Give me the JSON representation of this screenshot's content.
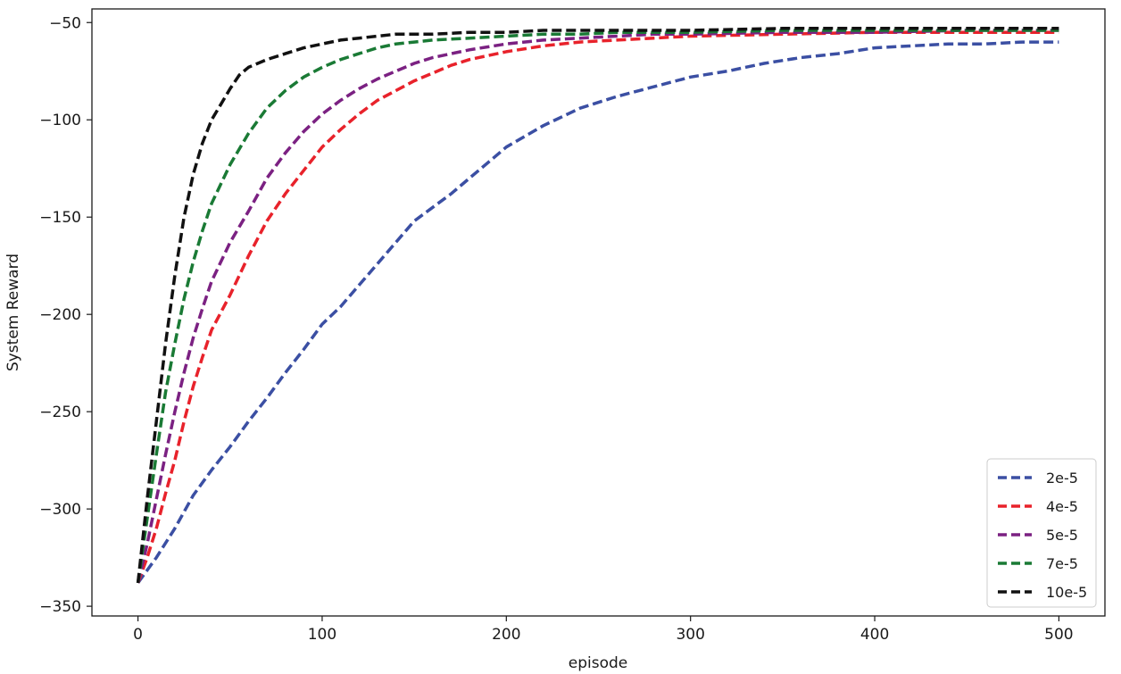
{
  "chart_data": {
    "type": "line",
    "title": "",
    "xlabel": "episode",
    "ylabel": "System Reward",
    "xlim": [
      -25,
      525
    ],
    "ylim": [
      -355,
      -43
    ],
    "xticks": [
      0,
      100,
      200,
      300,
      400,
      500
    ],
    "yticks": [
      -350,
      -300,
      -250,
      -200,
      -150,
      -100,
      -50
    ],
    "grid": false,
    "legend_position": "bottom-right",
    "line_style": "dashed",
    "series": [
      {
        "name": "2e-5",
        "color": "#3b4fa3",
        "x": [
          0,
          10,
          20,
          30,
          40,
          50,
          60,
          70,
          80,
          90,
          100,
          110,
          120,
          130,
          140,
          150,
          160,
          170,
          180,
          190,
          200,
          220,
          240,
          260,
          280,
          300,
          320,
          340,
          360,
          380,
          400,
          420,
          440,
          460,
          480,
          500
        ],
        "values": [
          -338,
          -325,
          -310,
          -293,
          -280,
          -268,
          -255,
          -243,
          -230,
          -218,
          -205,
          -196,
          -185,
          -174,
          -163,
          -152,
          -145,
          -138,
          -130,
          -122,
          -114,
          -103,
          -94,
          -88,
          -83,
          -78,
          -75,
          -71,
          -68,
          -66,
          -63,
          -62,
          -61,
          -61,
          -60,
          -60
        ]
      },
      {
        "name": "4e-5",
        "color": "#e8222b",
        "x": [
          0,
          5,
          10,
          15,
          20,
          25,
          30,
          35,
          40,
          50,
          60,
          70,
          80,
          90,
          100,
          110,
          120,
          130,
          140,
          150,
          160,
          170,
          180,
          200,
          220,
          240,
          260,
          280,
          300,
          350,
          400,
          450,
          500
        ],
        "values": [
          -338,
          -325,
          -310,
          -292,
          -275,
          -255,
          -237,
          -222,
          -208,
          -190,
          -170,
          -152,
          -138,
          -126,
          -114,
          -105,
          -97,
          -90,
          -85,
          -80,
          -76,
          -72,
          -69,
          -65,
          -62,
          -60,
          -59,
          -58,
          -57,
          -56,
          -55,
          -55,
          -55
        ]
      },
      {
        "name": "5e-5",
        "color": "#7b2182",
        "x": [
          0,
          5,
          10,
          15,
          20,
          25,
          30,
          35,
          40,
          50,
          60,
          70,
          80,
          90,
          100,
          110,
          120,
          130,
          140,
          150,
          160,
          180,
          200,
          220,
          240,
          260,
          280,
          300,
          350,
          400,
          450,
          500
        ],
        "values": [
          -338,
          -318,
          -295,
          -272,
          -250,
          -230,
          -212,
          -197,
          -183,
          -163,
          -147,
          -130,
          -117,
          -106,
          -97,
          -90,
          -84,
          -79,
          -75,
          -71,
          -68,
          -64,
          -61,
          -59,
          -58,
          -57,
          -56,
          -56,
          -55,
          -55,
          -54,
          -54
        ]
      },
      {
        "name": "7e-5",
        "color": "#1a7a35",
        "x": [
          0,
          5,
          10,
          15,
          20,
          25,
          30,
          35,
          40,
          50,
          60,
          70,
          80,
          90,
          100,
          110,
          120,
          130,
          140,
          150,
          160,
          180,
          200,
          220,
          240,
          260,
          300,
          350,
          400,
          450,
          500
        ],
        "values": [
          -338,
          -305,
          -272,
          -240,
          -215,
          -192,
          -173,
          -157,
          -143,
          -123,
          -107,
          -94,
          -85,
          -78,
          -73,
          -69,
          -66,
          -63,
          -61,
          -60,
          -59,
          -58,
          -57,
          -56,
          -56,
          -55,
          -55,
          -54,
          -54,
          -54,
          -54
        ]
      },
      {
        "name": "10e-5",
        "color": "#111111",
        "x": [
          0,
          5,
          10,
          15,
          20,
          25,
          30,
          35,
          40,
          45,
          50,
          55,
          60,
          70,
          80,
          90,
          100,
          110,
          120,
          130,
          140,
          160,
          180,
          200,
          220,
          250,
          300,
          350,
          400,
          450,
          500
        ],
        "values": [
          -338,
          -295,
          -255,
          -215,
          -180,
          -150,
          -128,
          -112,
          -100,
          -92,
          -84,
          -77,
          -73,
          -69,
          -66,
          -63,
          -61,
          -59,
          -58,
          -57,
          -56,
          -56,
          -55,
          -55,
          -54,
          -54,
          -54,
          -53,
          -53,
          -53,
          -53
        ]
      }
    ]
  }
}
